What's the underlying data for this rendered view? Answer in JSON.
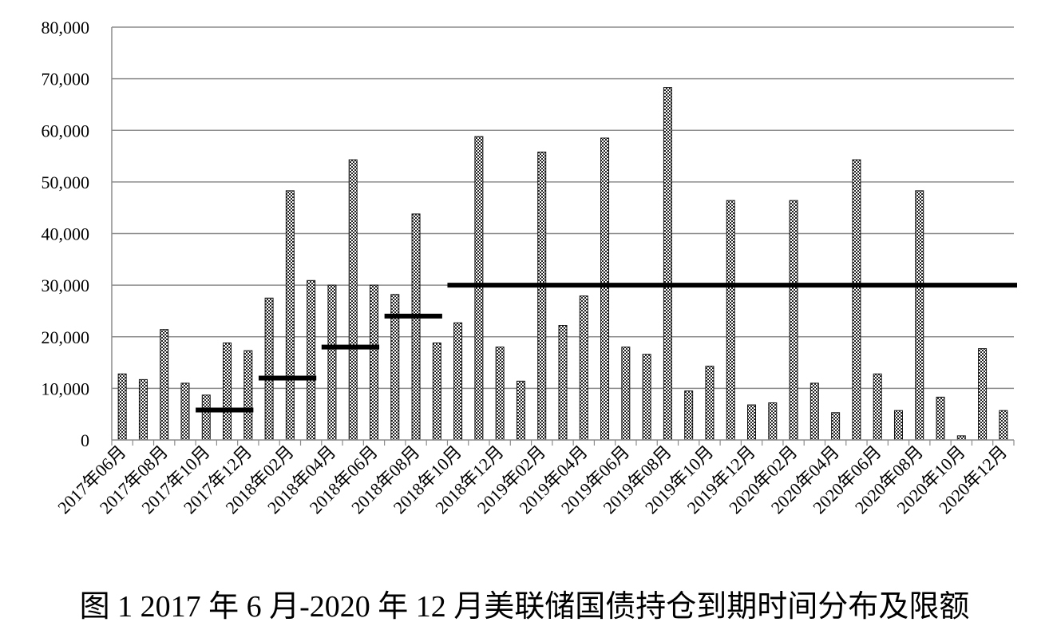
{
  "caption": "图 1 2017 年 6 月-2020 年 12 月美联储国债持仓到期时间分布及限额",
  "chart_data": {
    "type": "bar",
    "title": "",
    "xlabel": "",
    "ylabel": "",
    "ylim": [
      0,
      80000
    ],
    "y_ticks": [
      0,
      10000,
      20000,
      30000,
      40000,
      50000,
      60000,
      70000,
      80000
    ],
    "y_tick_labels": [
      "0",
      "10,000",
      "20,000",
      "30,000",
      "40,000",
      "50,000",
      "60,000",
      "70,000",
      "80,000"
    ],
    "grid": true,
    "categories": [
      "2017年06月",
      "2017年07月",
      "2017年08月",
      "2017年09月",
      "2017年10月",
      "2017年11月",
      "2017年12月",
      "2018年01月",
      "2018年02月",
      "2018年03月",
      "2018年04月",
      "2018年05月",
      "2018年06月",
      "2018年07月",
      "2018年08月",
      "2018年09月",
      "2018年10月",
      "2018年11月",
      "2018年12月",
      "2019年01月",
      "2019年02月",
      "2019年03月",
      "2019年04月",
      "2019年05月",
      "2019年06月",
      "2019年07月",
      "2019年08月",
      "2019年09月",
      "2019年10月",
      "2019年11月",
      "2019年12月",
      "2020年01月",
      "2020年02月",
      "2020年03月",
      "2020年04月",
      "2020年05月",
      "2020年06月",
      "2020年07月",
      "2020年08月",
      "2020年09月",
      "2020年10月",
      "2020年11月",
      "2020年12月"
    ],
    "x_tick_labels": [
      "2017年06月",
      "2017年08月",
      "2017年10月",
      "2017年12月",
      "2018年02月",
      "2018年04月",
      "2018年06月",
      "2018年08月",
      "2018年10月",
      "2018年12月",
      "2019年02月",
      "2019年04月",
      "2019年06月",
      "2019年08月",
      "2019年10月",
      "2019年12月",
      "2020年02月",
      "2020年04月",
      "2020年06月",
      "2020年08月",
      "2020年10月",
      "2020年12月"
    ],
    "values": [
      12800,
      11700,
      21400,
      11000,
      8700,
      18800,
      17300,
      27500,
      48300,
      30900,
      30000,
      54300,
      30000,
      28200,
      43800,
      18800,
      22700,
      58800,
      18000,
      11400,
      55800,
      22200,
      27900,
      58500,
      18000,
      16600,
      68300,
      9500,
      14300,
      46400,
      6800,
      7200,
      46400,
      11000,
      5300,
      54300,
      12800,
      5700,
      48300,
      8300,
      800,
      17700,
      5700
    ],
    "limits": [
      {
        "start": "2017年10月",
        "end": "2017年12月",
        "value": 5800
      },
      {
        "start": "2018年01月",
        "end": "2018年03月",
        "value": 12000
      },
      {
        "start": "2018年04月",
        "end": "2018年06月",
        "value": 18000
      },
      {
        "start": "2018年07月",
        "end": "2018年09月",
        "value": 24000
      },
      {
        "start": "2018年10月",
        "end": "2020年12月",
        "value": 30000
      }
    ]
  }
}
